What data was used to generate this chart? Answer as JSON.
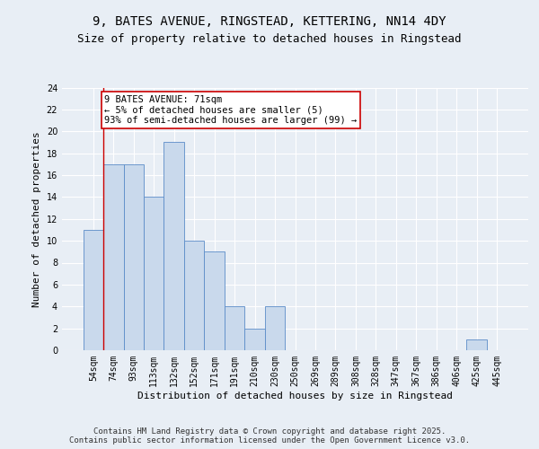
{
  "title_line1": "9, BATES AVENUE, RINGSTEAD, KETTERING, NN14 4DY",
  "title_line2": "Size of property relative to detached houses in Ringstead",
  "xlabel": "Distribution of detached houses by size in Ringstead",
  "ylabel": "Number of detached properties",
  "categories": [
    "54sqm",
    "74sqm",
    "93sqm",
    "113sqm",
    "132sqm",
    "152sqm",
    "171sqm",
    "191sqm",
    "210sqm",
    "230sqm",
    "250sqm",
    "269sqm",
    "289sqm",
    "308sqm",
    "328sqm",
    "347sqm",
    "367sqm",
    "386sqm",
    "406sqm",
    "425sqm",
    "445sqm"
  ],
  "values": [
    11,
    17,
    17,
    14,
    19,
    10,
    9,
    4,
    2,
    4,
    0,
    0,
    0,
    0,
    0,
    0,
    0,
    0,
    0,
    1,
    0
  ],
  "bar_color": "#c9d9ec",
  "bar_edge_color": "#5b8cc8",
  "highlight_line_color": "#cc0000",
  "annotation_text": "9 BATES AVENUE: 71sqm\n← 5% of detached houses are smaller (5)\n93% of semi-detached houses are larger (99) →",
  "annotation_box_color": "#cc0000",
  "ylim": [
    0,
    24
  ],
  "yticks": [
    0,
    2,
    4,
    6,
    8,
    10,
    12,
    14,
    16,
    18,
    20,
    22,
    24
  ],
  "background_color": "#e8eef5",
  "plot_bg_color": "#e8eef5",
  "grid_color": "#ffffff",
  "footer_text": "Contains HM Land Registry data © Crown copyright and database right 2025.\nContains public sector information licensed under the Open Government Licence v3.0.",
  "title_fontsize": 10,
  "subtitle_fontsize": 9,
  "axis_label_fontsize": 8,
  "tick_fontsize": 7,
  "annotation_fontsize": 7.5,
  "footer_fontsize": 6.5,
  "ylabel_fontsize": 8
}
